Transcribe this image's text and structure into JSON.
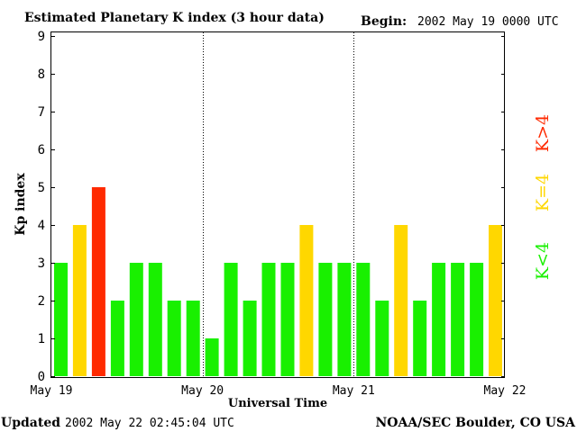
{
  "chart_data": {
    "type": "bar",
    "title": "Estimated Planetary K index (3 hour data)",
    "begin_label": "Begin:",
    "begin_value": "2002 May 19 0000 UTC",
    "xlabel": "Universal Time",
    "ylabel": "Kp index",
    "ylim": [
      0,
      9
    ],
    "yticks": [
      "0",
      "1",
      "2",
      "3",
      "4",
      "5",
      "6",
      "7",
      "8",
      "9"
    ],
    "xticks": [
      "May 19",
      "May 20",
      "May 21",
      "May 22"
    ],
    "day_separators": "dotted vertical lines at day boundaries",
    "values": [
      3,
      4,
      5,
      2,
      3,
      3,
      2,
      2,
      1,
      3,
      2,
      3,
      3,
      4,
      3,
      3,
      3,
      2,
      4,
      2,
      3,
      3,
      3,
      4
    ],
    "legend": {
      "low": "K<4",
      "mid": "K=4",
      "high": "K>4"
    },
    "colors": {
      "low": "#19f000",
      "mid": "#ffd700",
      "high": "#ff2a00"
    },
    "grid": false
  },
  "footer": {
    "updated_label": "Updated",
    "updated_value": "2002 May 22 02:45:04 UTC",
    "source": "NOAA/SEC Boulder, CO USA"
  }
}
